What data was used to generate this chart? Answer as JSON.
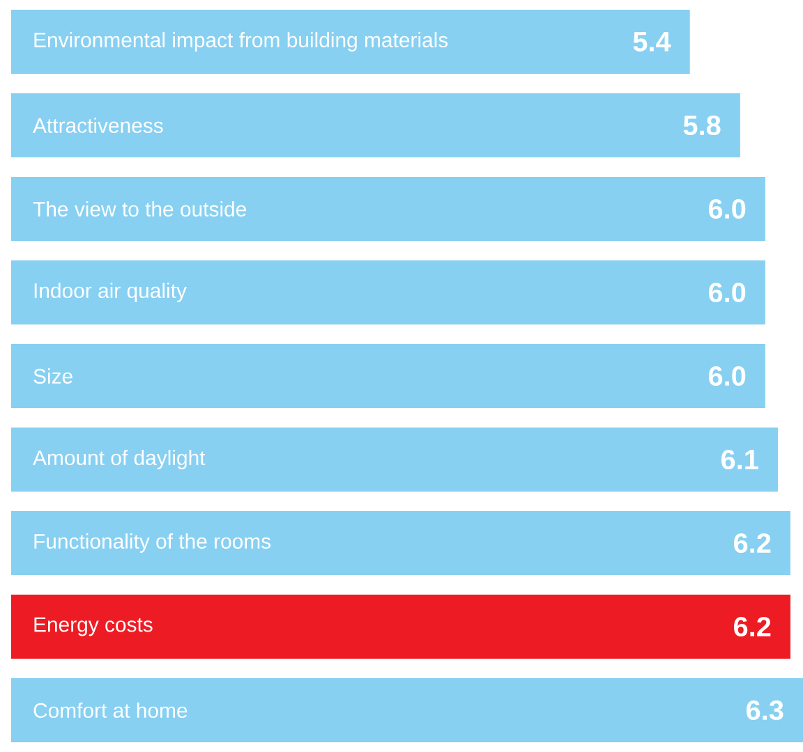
{
  "chart_data": {
    "type": "bar",
    "orientation": "horizontal",
    "categories": [
      "Environmental impact from building materials",
      "Attractiveness",
      "The view to the outside",
      "Indoor air quality",
      "Size",
      "Amount of daylight",
      "Functionality of the rooms",
      "Energy costs",
      "Comfort at home"
    ],
    "values": [
      5.4,
      5.8,
      6.0,
      6.0,
      6.0,
      6.1,
      6.2,
      6.2,
      6.3
    ],
    "colors": [
      "#87d0f2",
      "#87d0f2",
      "#87d0f2",
      "#87d0f2",
      "#87d0f2",
      "#87d0f2",
      "#87d0f2",
      "#ed1c24",
      "#87d0f2"
    ],
    "value_labels": [
      "5.4",
      "5.8",
      "6.0",
      "6.0",
      "6.0",
      "6.1",
      "6.2",
      "6.2",
      "6.3"
    ]
  }
}
